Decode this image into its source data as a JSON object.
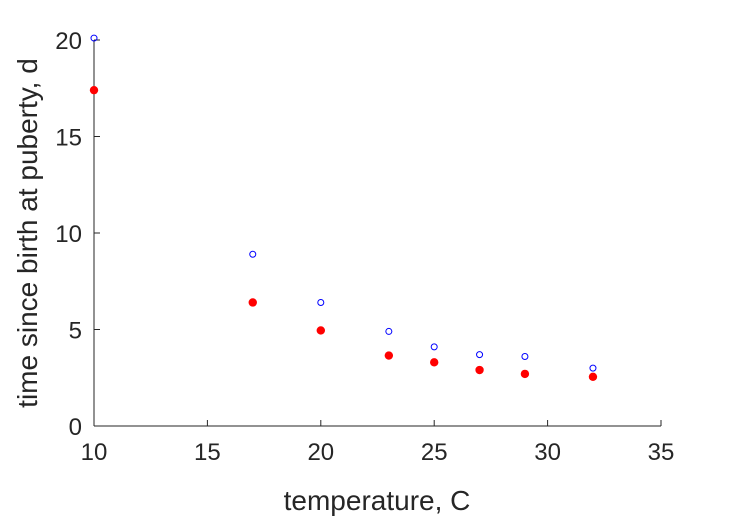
{
  "chart_data": {
    "type": "scatter",
    "title": "",
    "xlabel": "temperature, C",
    "ylabel": "time since birth at puberty, d",
    "xlim": [
      10,
      35
    ],
    "ylim": [
      0,
      20
    ],
    "xticks": [
      10,
      15,
      20,
      25,
      30,
      35
    ],
    "yticks": [
      0,
      5,
      10,
      15,
      20
    ],
    "grid": false,
    "series": [
      {
        "marker": "open-circle",
        "color": "#0000ff",
        "x": [
          10,
          17,
          20,
          23,
          25,
          27,
          29,
          32
        ],
        "y": [
          20.1,
          8.9,
          6.4,
          4.9,
          4.1,
          3.7,
          3.6,
          3.0
        ]
      },
      {
        "marker": "filled-circle",
        "color": "#ff0000",
        "x": [
          10,
          17,
          20,
          23,
          25,
          27,
          29,
          32
        ],
        "y": [
          17.4,
          6.4,
          4.95,
          3.65,
          3.3,
          2.9,
          2.7,
          2.55
        ]
      }
    ]
  }
}
